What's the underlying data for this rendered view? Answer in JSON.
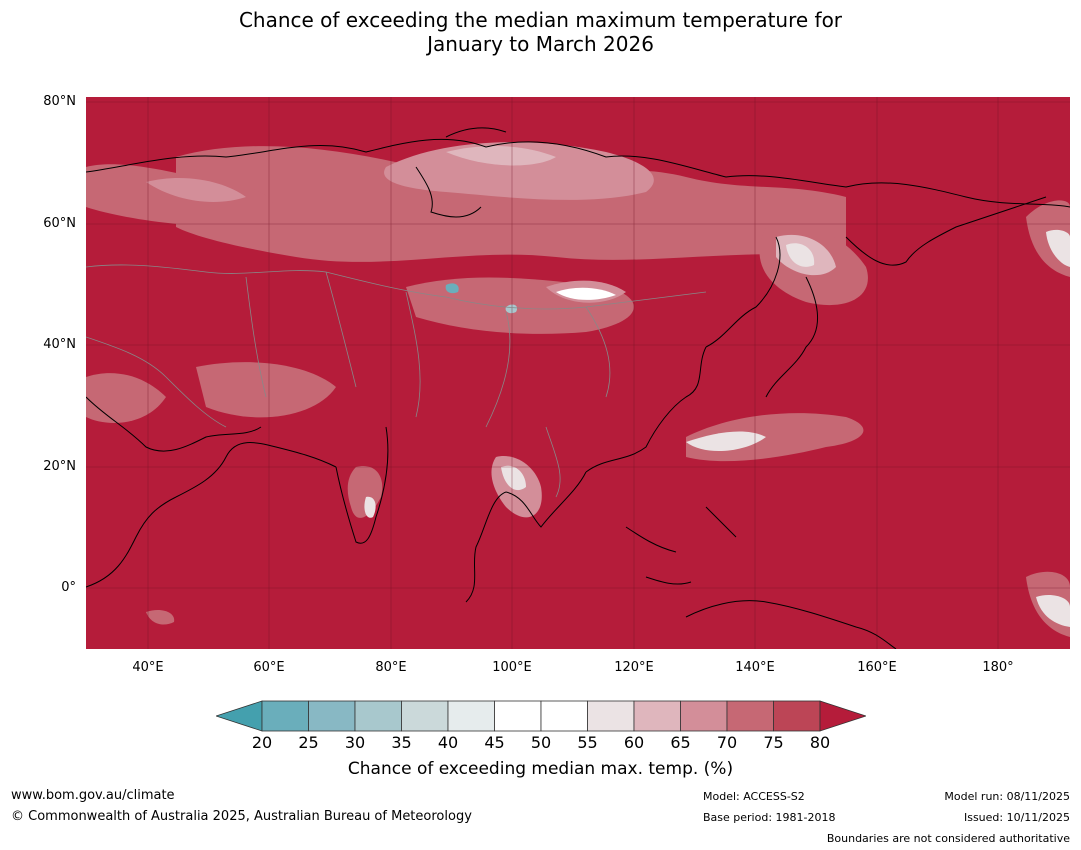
{
  "title": {
    "line1": "Chance of exceeding the median maximum temperature for",
    "line2": "January to March 2026"
  },
  "map": {
    "background_color": "#b51c3a",
    "lat_labels": [
      "80°N",
      "60°N",
      "40°N",
      "20°N",
      "0°"
    ],
    "lon_labels": [
      "40°E",
      "60°E",
      "80°E",
      "100°E",
      "120°E",
      "140°E",
      "160°E",
      "180°"
    ]
  },
  "colorbar": {
    "ticks": [
      "20",
      "25",
      "30",
      "35",
      "40",
      "45",
      "50",
      "55",
      "60",
      "65",
      "70",
      "75",
      "80"
    ],
    "colors": [
      "#6aaebb",
      "#88b8c4",
      "#a8c8cd",
      "#cbd9da",
      "#e6eced",
      "#ffffff",
      "#ffffff",
      "#ebe3e4",
      "#dfb6bd",
      "#d38e99",
      "#c66874",
      "#bc4556"
    ],
    "below_color": "#44a0ae",
    "above_color": "#b51c3a",
    "label": "Chance of exceeding median max. temp. (%)"
  },
  "footer": {
    "website": "www.bom.gov.au/climate",
    "copyright": "© Commonwealth of Australia 2025, Australian Bureau of Meteorology",
    "model": "Model: ACCESS-S2",
    "base_period": "Base period: 1981-2018",
    "model_run": "Model run: 08/11/2025",
    "issued": "Issued: 10/11/2025",
    "disclaimer": "Boundaries are not considered authoritative"
  }
}
